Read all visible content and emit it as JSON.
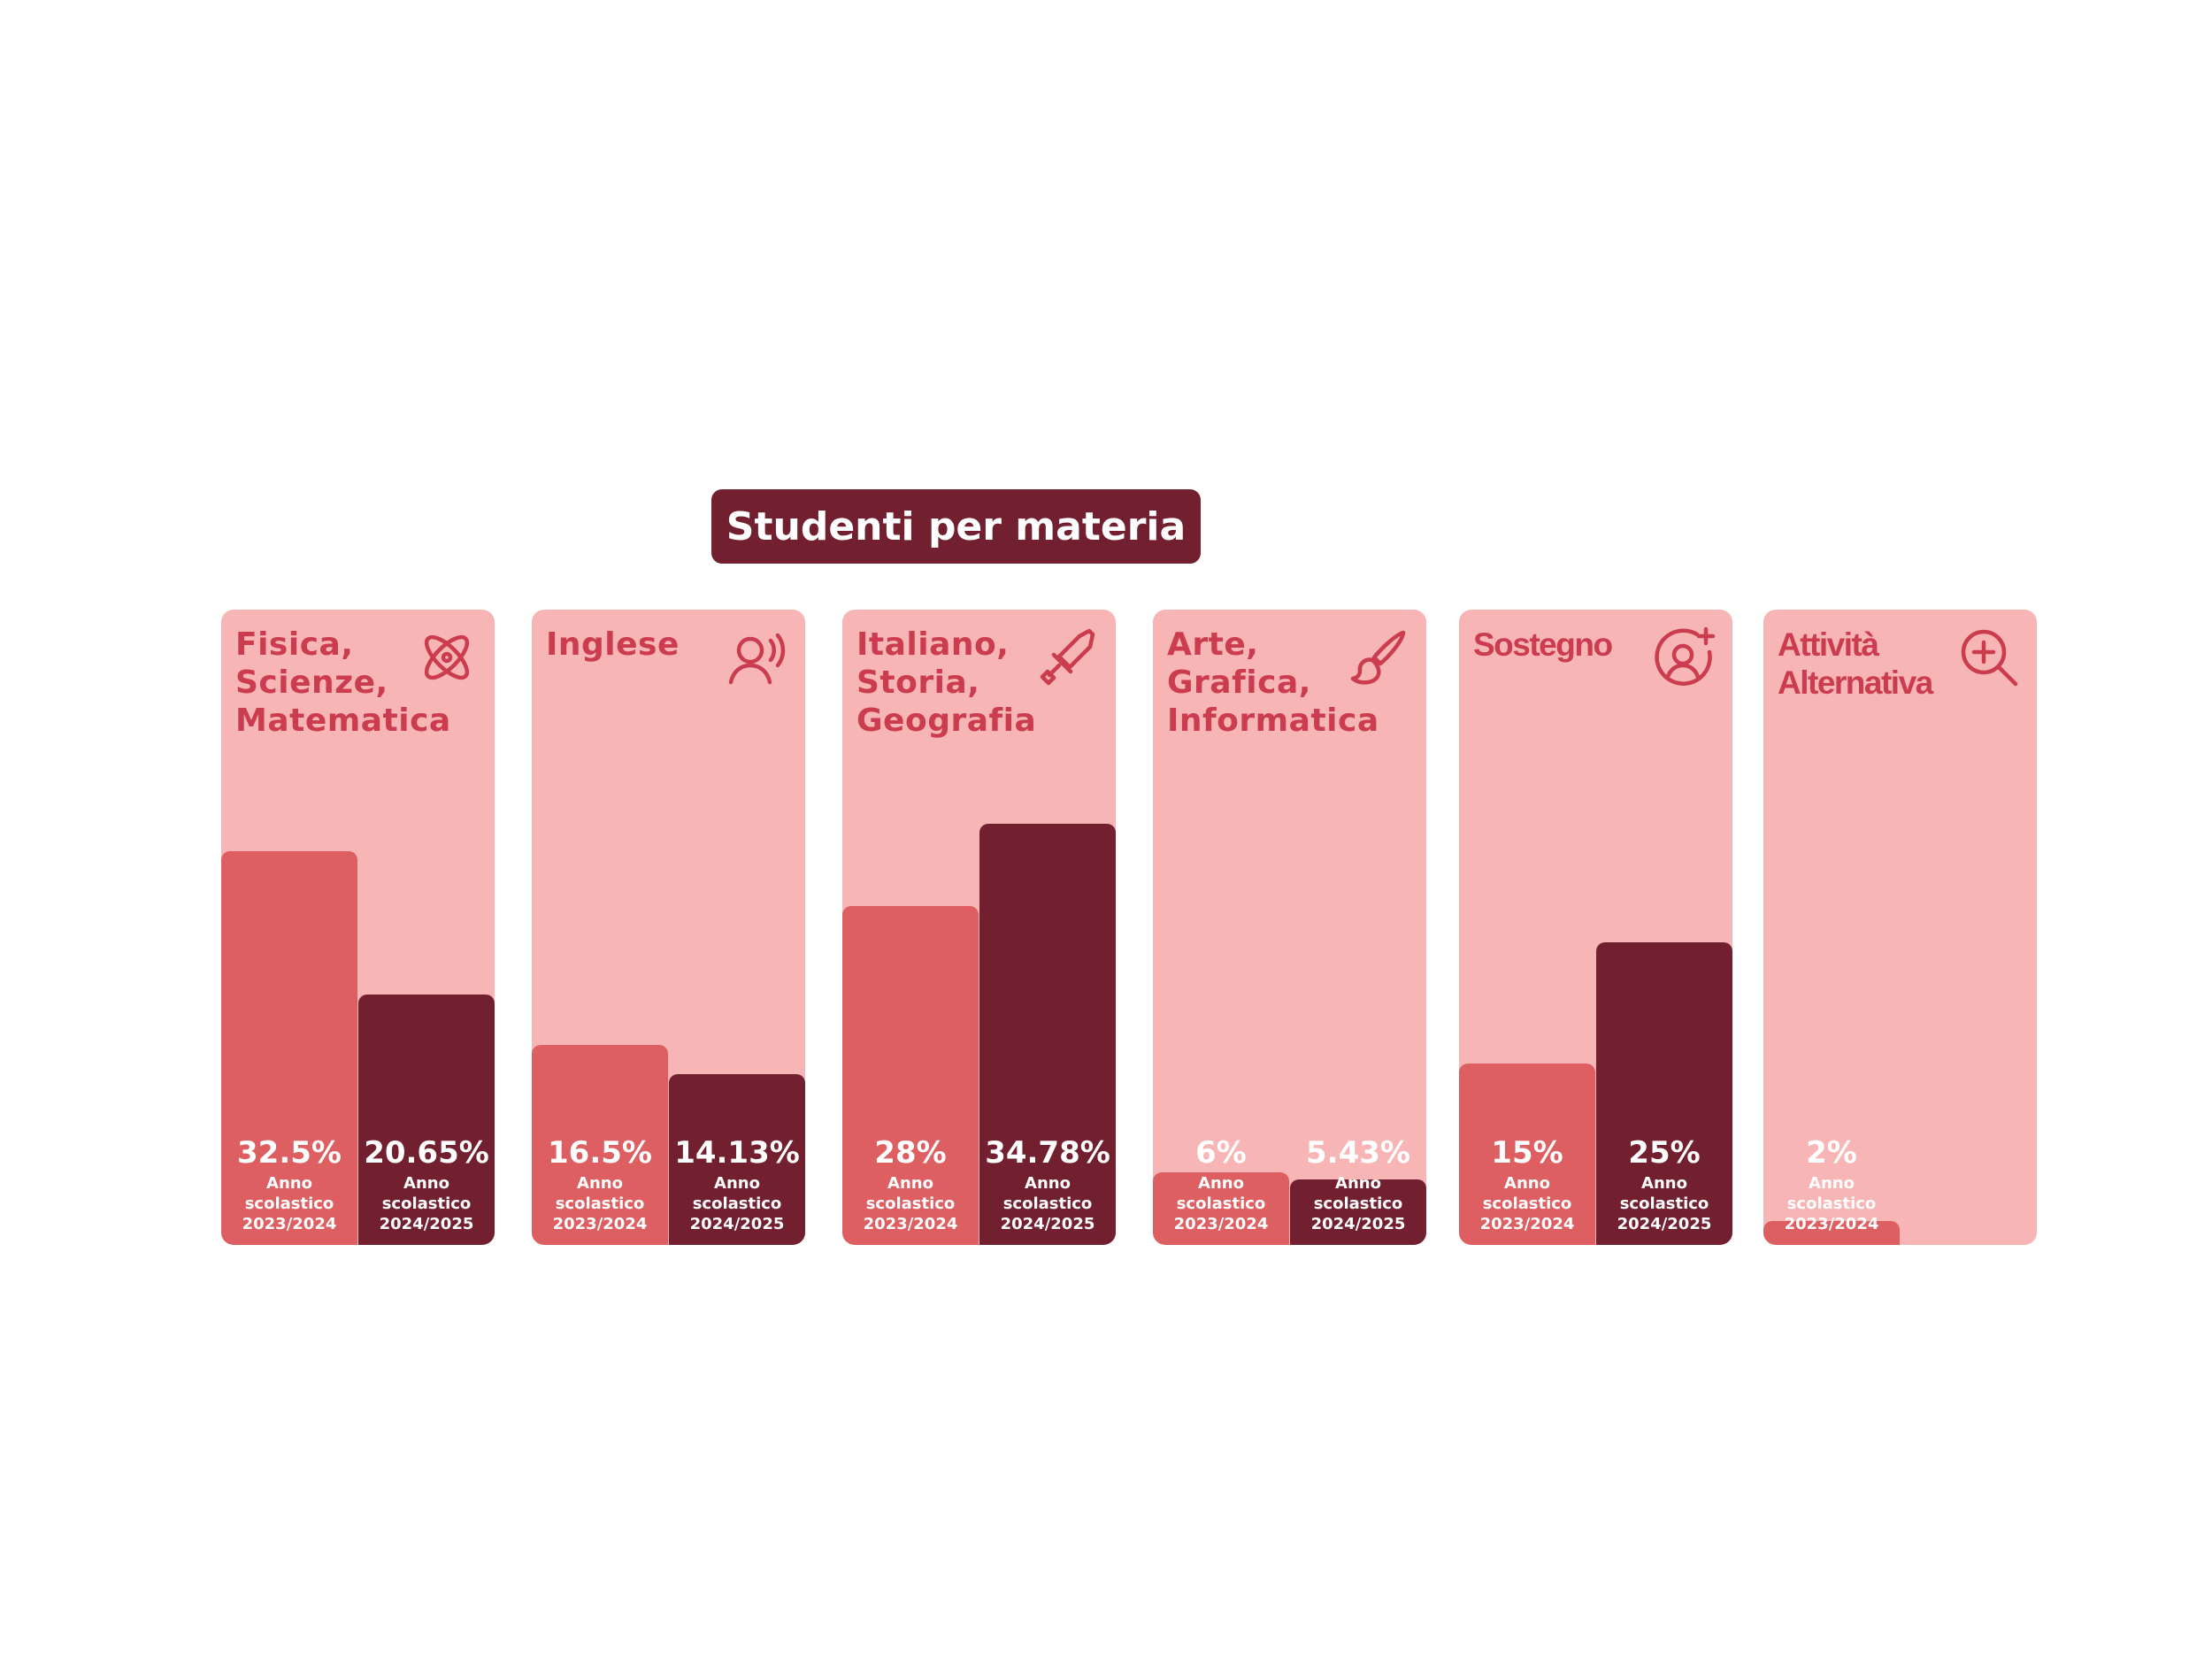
{
  "chart_data": {
    "type": "bar",
    "title": "Studenti per materia",
    "unit": "%",
    "ylim": [
      0,
      70
    ],
    "colors": {
      "card_bg": "#f7b6b5",
      "label": "#cc3c4f",
      "prev_series": "#dd5f61",
      "curr_series": "#721f2f",
      "title_bg": "#721f2f",
      "value_text": "#ffffff"
    },
    "bar_caption": {
      "line1": "Anno",
      "line2": "scolastico"
    },
    "series": [
      {
        "year": "2023/2024"
      },
      {
        "year": "2024/2025"
      }
    ],
    "categories": [
      {
        "label": "Fisica,\nScienze,\nMatematica",
        "icon": "atom-icon",
        "values": [
          {
            "value": 32.5,
            "text": "32.5%",
            "year": "2023/2024"
          },
          {
            "value": 20.65,
            "text": "20.65%",
            "year": "2024/2025"
          }
        ]
      },
      {
        "label": "Inglese",
        "icon": "speaking-person-icon",
        "values": [
          {
            "value": 16.5,
            "text": "16.5%",
            "year": "2023/2024"
          },
          {
            "value": 14.13,
            "text": "14.13%",
            "year": "2024/2025"
          }
        ]
      },
      {
        "label": "Italiano,\nStoria,\nGeografia",
        "icon": "sword-icon",
        "values": [
          {
            "value": 28,
            "text": "28%",
            "year": "2023/2024"
          },
          {
            "value": 34.78,
            "text": "34.78%",
            "year": "2024/2025"
          }
        ]
      },
      {
        "label": "Arte,\nGrafica,\nInformatica",
        "icon": "paintbrush-icon",
        "values": [
          {
            "value": 6,
            "text": "6%",
            "year": "2023/2024"
          },
          {
            "value": 5.43,
            "text": "5.43%",
            "year": "2024/2025"
          }
        ]
      },
      {
        "label": "Sostegno",
        "icon": "user-add-icon",
        "values": [
          {
            "value": 15,
            "text": "15%",
            "year": "2023/2024"
          },
          {
            "value": 25,
            "text": "25%",
            "year": "2024/2025"
          }
        ]
      },
      {
        "label": "Attività\nAlternativa",
        "icon": "zoom-in-icon",
        "values": [
          {
            "value": 2,
            "text": "2%",
            "year": "2023/2024"
          }
        ]
      }
    ]
  }
}
